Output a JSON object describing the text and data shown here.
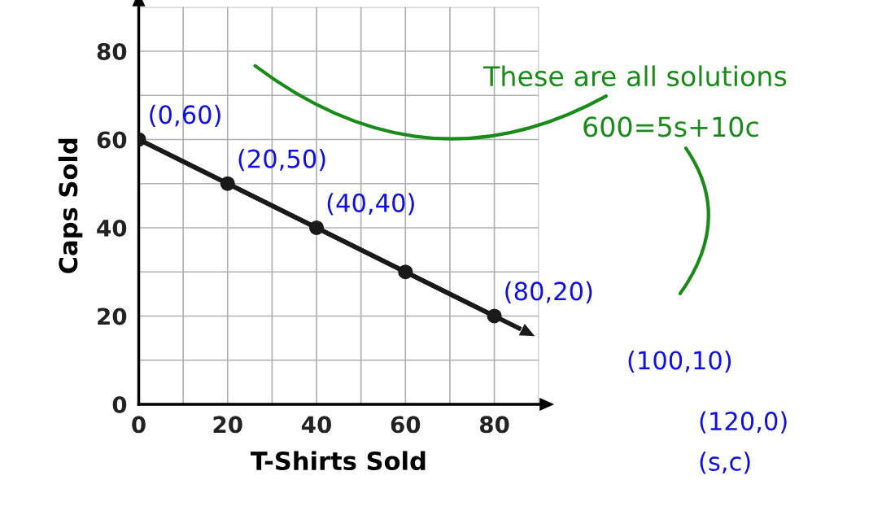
{
  "chart_data": {
    "type": "line",
    "xlabel": "T-Shirts Sold",
    "ylabel": "Caps Sold",
    "series": [
      {
        "color": "#1a1a1a",
        "x": [
          0,
          20,
          40,
          60,
          80
        ],
        "values": [
          60,
          50,
          40,
          30,
          20
        ],
        "marker": "circle"
      },
      {
        "color": "#1a1a1a",
        "x": [
          0,
          86
        ],
        "values": [
          60,
          17
        ],
        "marker": "none"
      }
    ],
    "xlim": [
      0,
      90
    ],
    "ylim": [
      0,
      90
    ],
    "xticks": [
      0,
      {
        "value": 10,
        "label": null
      },
      20,
      {
        "value": 30,
        "label": null
      },
      40,
      {
        "value": 50,
        "label": null
      },
      60,
      {
        "value": 70,
        "label": null
      },
      80,
      {
        "value": 90,
        "label": null
      }
    ],
    "yticks": [
      0,
      {
        "value": 10,
        "label": null
      },
      20,
      {
        "value": 30,
        "label": null
      },
      40,
      {
        "value": 50,
        "label": null
      },
      60,
      {
        "value": 70,
        "label": null
      },
      80,
      {
        "value": 90,
        "label": null
      }
    ],
    "grid": true,
    "line_style": "solid",
    "annotations": [
      {
        "text": "(0,60)",
        "x": 0,
        "y": 60
      },
      {
        "text": "(20,50)",
        "x": 20,
        "y": 50
      },
      {
        "text": "(40,40)",
        "x": 40,
        "y": 40
      },
      {
        "text": "(80,20)",
        "x": 80,
        "y": 20
      },
      "(100,10)",
      "(120,0)",
      "(s,c)",
      "These are all solutions",
      "600=5s+10c"
    ]
  }
}
